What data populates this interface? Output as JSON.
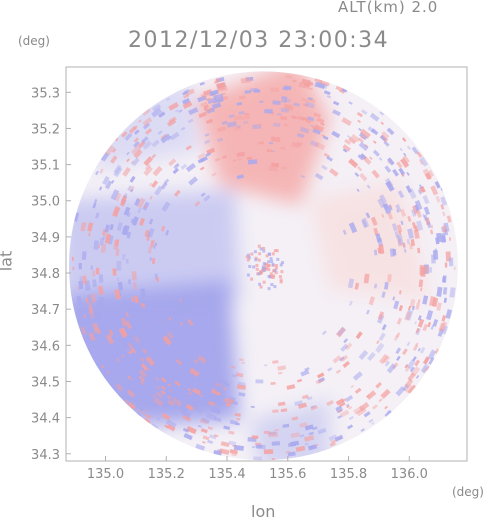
{
  "header": {
    "altitude": "ALT(km) 2.0",
    "timestamp": "2012/12/03 23:00:34"
  },
  "axes": {
    "x_unit": "(deg)",
    "y_unit": "(deg)",
    "x_label": "lon",
    "y_label": "lat",
    "x_ticks": [
      "135.0",
      "135.2",
      "135.4",
      "135.6",
      "135.8",
      "136.0"
    ],
    "y_ticks": [
      "35.3",
      "35.2",
      "35.1",
      "35.0",
      "34.9",
      "34.8",
      "34.7",
      "34.6",
      "34.5",
      "34.4",
      "34.3"
    ]
  },
  "map": {
    "center_lon": 135.52,
    "center_lat": 34.82,
    "radius_deg": 0.64,
    "lon_range": [
      134.87,
      136.19
    ],
    "lat_range": [
      34.28,
      35.37
    ],
    "colors": {
      "positive": "#f4a0a0",
      "negative": "#a8a8ee",
      "neutral": "#f4f0f6",
      "frame": "#b0b0b0"
    }
  }
}
